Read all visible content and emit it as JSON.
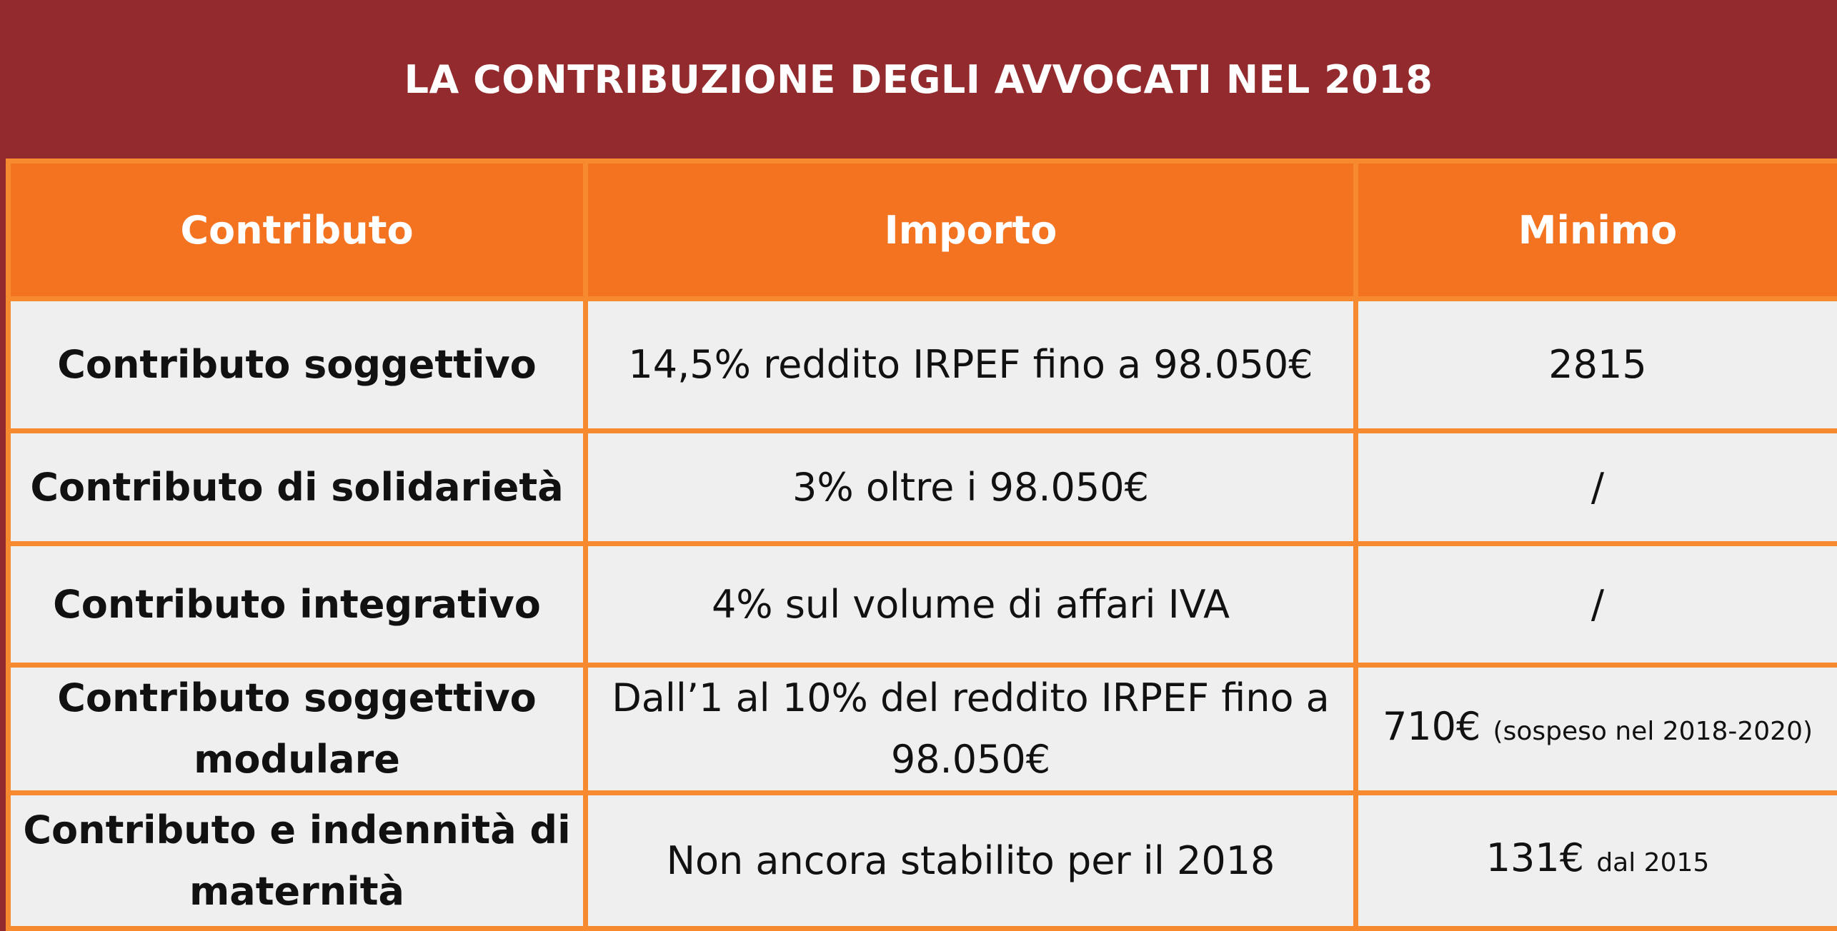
{
  "title": "LA CONTRIBUZIONE DEGLI AVVOCATI NEL 2018",
  "colors": {
    "title_background": "#922a2e",
    "header_background": "#f47321",
    "border": "#f7892f",
    "cell_background": "#efefef"
  },
  "table": {
    "headers": [
      "Contributo",
      "Importo",
      "Minimo"
    ],
    "rows": [
      {
        "contributo": "Contributo soggettivo",
        "importo": "14,5% reddito IRPEF fino a 98.050€",
        "minimo": "2815",
        "minimo_note": ""
      },
      {
        "contributo": "Contributo di solidarietà",
        "importo": "3% oltre i 98.050€",
        "minimo": "/",
        "minimo_note": ""
      },
      {
        "contributo": "Contributo integrativo",
        "importo": "4% sul volume di affari IVA",
        "minimo": "/",
        "minimo_note": ""
      },
      {
        "contributo": "Contributo soggettivo modulare",
        "importo": "Dall’1 al 10% del reddito IRPEF fino a 98.050€",
        "minimo": "710€",
        "minimo_note": "(sospeso nel 2018-2020)"
      },
      {
        "contributo": "Contributo e indennità di maternità",
        "importo": "Non ancora stabilito per il 2018",
        "minimo": "131€",
        "minimo_note": "dal 2015"
      }
    ]
  }
}
